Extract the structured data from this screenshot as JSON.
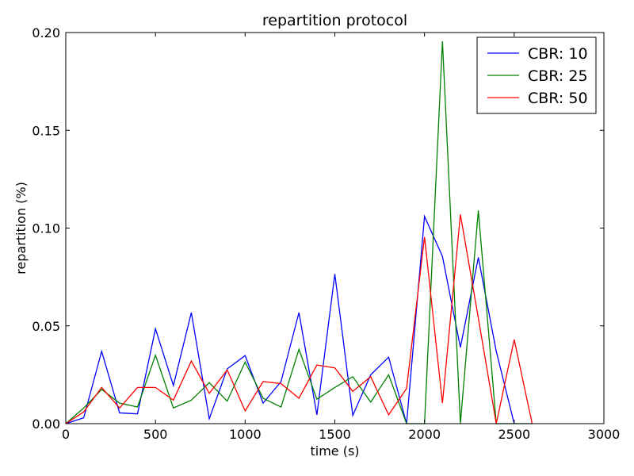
{
  "chart_data": {
    "type": "line",
    "title": "repartition protocol",
    "xlabel": "time (s)",
    "ylabel": "repartition (%)",
    "xlim": [
      0,
      3000
    ],
    "ylim": [
      0,
      0.2
    ],
    "x_ticks": [
      0,
      500,
      1000,
      1500,
      2000,
      2500,
      3000
    ],
    "x_tick_labels": [
      "0",
      "500",
      "1000",
      "1500",
      "2000",
      "2500",
      "3000"
    ],
    "y_ticks": [
      0.0,
      0.05,
      0.1,
      0.15,
      0.2
    ],
    "y_tick_labels": [
      "0.00",
      "0.05",
      "0.10",
      "0.15",
      "0.20"
    ],
    "grid": false,
    "legend_position": "top-right",
    "series": [
      {
        "name": "CBR: 10",
        "color": "#0000ff",
        "x": [
          0,
          100,
          200,
          300,
          400,
          500,
          600,
          700,
          800,
          900,
          1000,
          1100,
          1200,
          1300,
          1400,
          1500,
          1600,
          1700,
          1800,
          1900,
          2000,
          2100,
          2200,
          2300,
          2400,
          2500
        ],
        "y": [
          0.0,
          0.003,
          0.037,
          0.0055,
          0.005,
          0.0485,
          0.0195,
          0.0568,
          0.0025,
          0.028,
          0.0348,
          0.0105,
          0.0215,
          0.0568,
          0.0045,
          0.0765,
          0.0042,
          0.025,
          0.034,
          0.0,
          0.106,
          0.0855,
          0.039,
          0.085,
          0.037,
          0.0
        ]
      },
      {
        "name": "CBR: 25",
        "color": "#008000",
        "x": [
          0,
          100,
          200,
          300,
          400,
          500,
          600,
          700,
          800,
          900,
          1000,
          1100,
          1200,
          1300,
          1400,
          1500,
          1600,
          1700,
          1800,
          1900,
          2000,
          2100,
          2200,
          2300,
          2400,
          2500,
          2600
        ],
        "y": [
          0.0,
          0.008,
          0.0175,
          0.0105,
          0.0085,
          0.035,
          0.008,
          0.012,
          0.021,
          0.0115,
          0.0315,
          0.013,
          0.0085,
          0.038,
          0.0125,
          0.0185,
          0.024,
          0.011,
          0.025,
          0.0,
          0.0,
          0.1955,
          0.0,
          0.109,
          0.0,
          0.0,
          0.0
        ]
      },
      {
        "name": "CBR: 50",
        "color": "#ff0000",
        "x": [
          0,
          100,
          200,
          300,
          400,
          500,
          600,
          700,
          800,
          900,
          1000,
          1100,
          1200,
          1300,
          1400,
          1500,
          1600,
          1700,
          1800,
          1900,
          2000,
          2100,
          2200,
          2300,
          2400,
          2500,
          2600
        ],
        "y": [
          0.0,
          0.006,
          0.0185,
          0.008,
          0.0185,
          0.0185,
          0.012,
          0.032,
          0.0155,
          0.0275,
          0.0065,
          0.0215,
          0.0205,
          0.013,
          0.03,
          0.0285,
          0.0165,
          0.024,
          0.0045,
          0.018,
          0.0955,
          0.0105,
          0.107,
          0.054,
          0.0,
          0.043,
          0.0
        ]
      }
    ]
  }
}
